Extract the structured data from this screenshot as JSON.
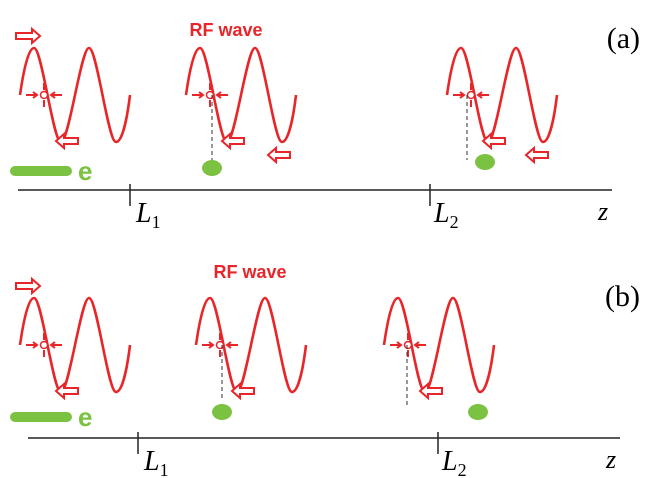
{
  "panels": [
    {
      "label": "(a)",
      "wave_label": "RF wave",
      "particle": "e",
      "axis": "z",
      "marks": [
        {
          "main": "L",
          "sub": "1"
        },
        {
          "main": "L",
          "sub": "2"
        }
      ]
    },
    {
      "label": "(b)",
      "wave_label": "RF wave",
      "particle": "e",
      "axis": "z",
      "marks": [
        {
          "main": "L",
          "sub": "1"
        },
        {
          "main": "L",
          "sub": "2"
        }
      ]
    }
  ]
}
